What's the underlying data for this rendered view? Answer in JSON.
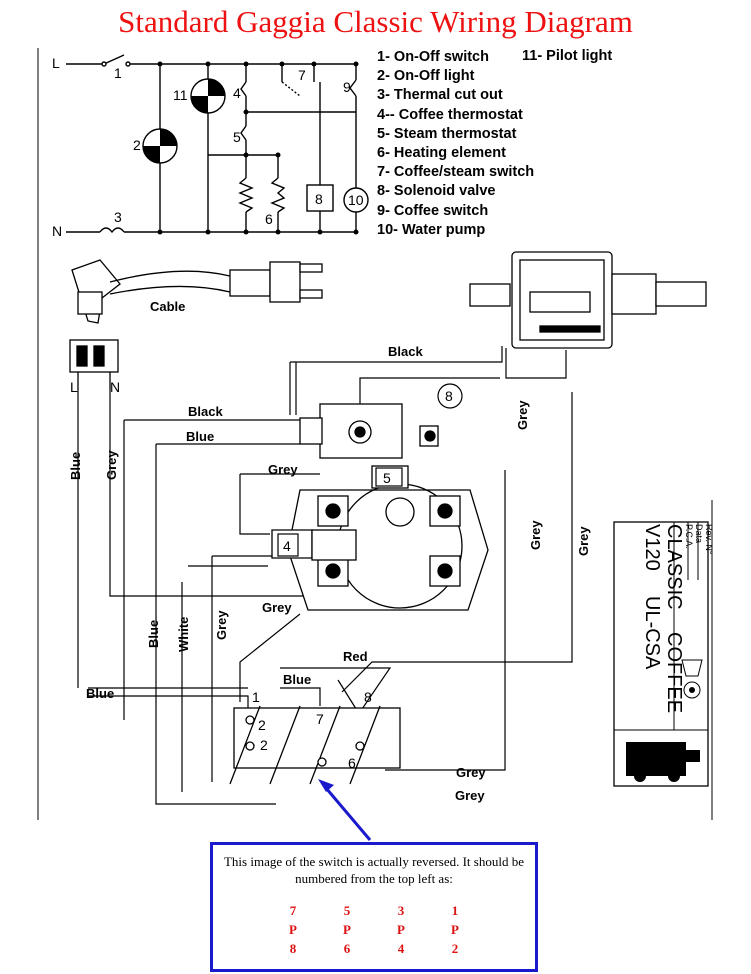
{
  "title": "Standard Gaggia Classic Wiring Diagram",
  "legend": [
    "1- On-Off switch",
    "2- On-Off light",
    "3- Thermal cut out",
    "4-- Coffee thermostat",
    "5- Steam thermostat",
    "6- Heating element",
    "7- Coffee/steam switch",
    "8- Solenoid valve",
    "9- Coffee switch",
    "10- Water pump"
  ],
  "legend_11": "11- Pilot light",
  "schematic": {
    "line_label": "L",
    "neutral_label": "N",
    "component_numbers": [
      "1",
      "2",
      "3",
      "4",
      "5",
      "6",
      "7",
      "8",
      "9",
      "10",
      "11"
    ]
  },
  "wiring": {
    "cable_label": "Cable",
    "plug_pins": [
      "L",
      "N"
    ],
    "wire_labels": {
      "black_top": "Black",
      "black_mid": "Black",
      "blue_mid": "Blue",
      "grey_left": "Grey",
      "grey_mid": "Grey",
      "grey_lower": "Grey",
      "grey_right1": "Grey",
      "grey_right2": "Grey",
      "grey_right3": "Grey",
      "blue_left": "Blue",
      "blue_vert": "Blue",
      "white_vert": "White",
      "grey_vert": "Grey",
      "blue_bottom": "Blue",
      "blue_switch": "Blue",
      "red": "Red",
      "grey_bottom1": "Grey",
      "grey_bottom2": "Grey"
    },
    "component_callouts": [
      "8",
      "5",
      "4"
    ],
    "switch_terminals": [
      "1",
      "7",
      "8",
      "2",
      "2",
      "6"
    ]
  },
  "stamp": {
    "lines": [
      "Rev. N°",
      "Data",
      "P.C.A.",
      "CLASSIC",
      "V120",
      "COFFEE",
      "UL-CSA"
    ]
  },
  "note": {
    "text": "This image of the switch is actually reversed. It should be numbered from the top left as:",
    "grid": [
      [
        "7",
        "5",
        "3",
        "1"
      ],
      [
        "P",
        "P",
        "P",
        "P"
      ],
      [
        "8",
        "6",
        "4",
        "2"
      ]
    ],
    "grid_color": "#dd1111",
    "border_color": "#1a1acc"
  },
  "colors": {
    "title": "#ee1111",
    "arrow": "#1a1acc"
  }
}
